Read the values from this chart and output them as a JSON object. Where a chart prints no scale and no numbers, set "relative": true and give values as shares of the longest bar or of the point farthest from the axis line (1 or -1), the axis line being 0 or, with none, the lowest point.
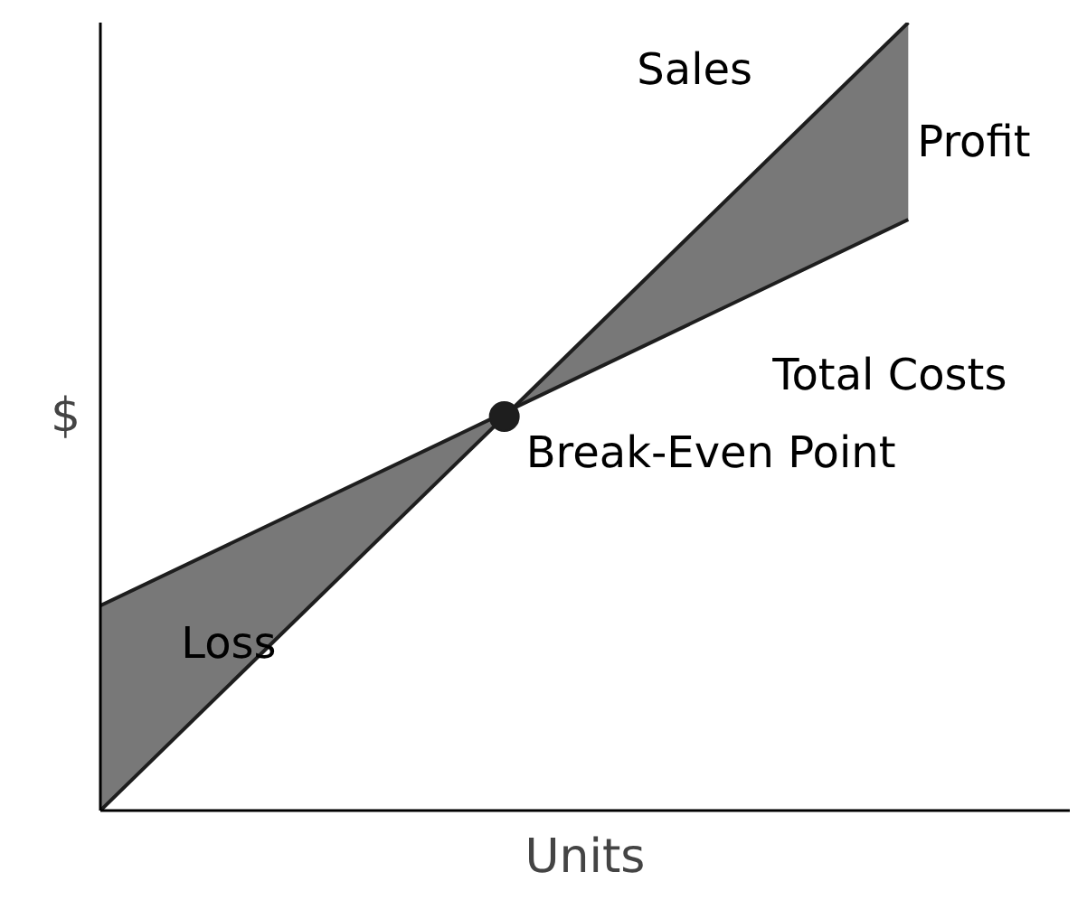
{
  "chart_data": {
    "type": "line",
    "relative": true,
    "xlabel": "Units",
    "ylabel": "$",
    "categories": [
      null,
      null,
      null
    ],
    "tick_labels": false,
    "grid": false,
    "legend": false,
    "series": [
      {
        "name": "Sales",
        "color": "#1e1e1e",
        "values": [
          0,
          0.5,
          1
        ],
        "lower": [
          0.26,
          0.505,
          0.75
        ],
        "upper": [
          0,
          0.5,
          1
        ]
      },
      {
        "name": "Total Costs",
        "color": "#1e1e1e",
        "values": [
          0.26,
          0.505,
          0.75
        ]
      }
    ],
    "annotations": [
      "Profit",
      "Loss",
      "Break-Even Point"
    ]
  }
}
